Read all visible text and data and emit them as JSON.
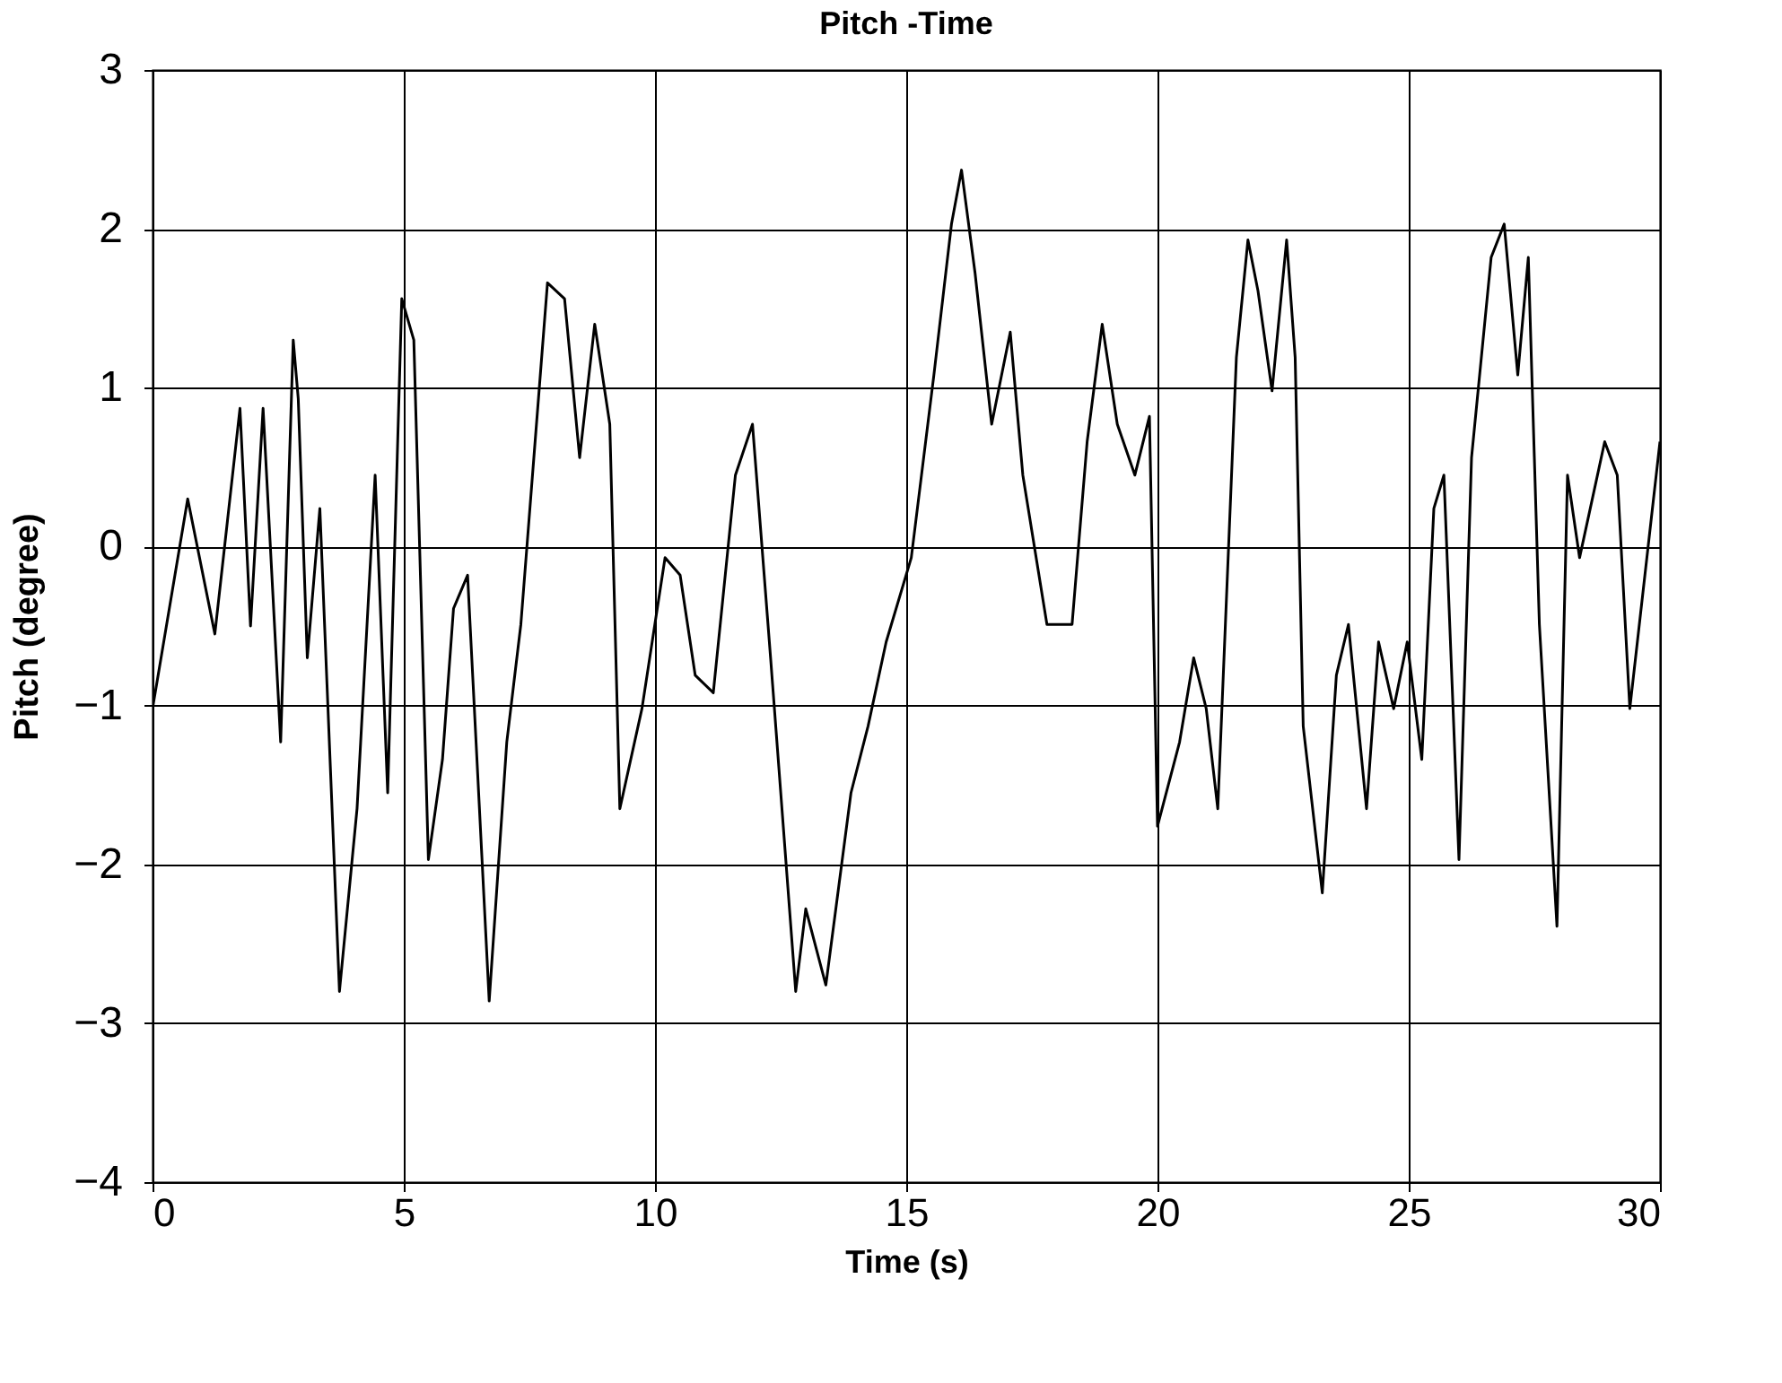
{
  "chart_data": {
    "type": "line",
    "title": "Pitch -Time",
    "xlabel": "Time (s)",
    "ylabel": "Pitch (degree)",
    "xlim": [
      0,
      30
    ],
    "xticks": [
      0,
      5,
      10,
      15,
      20,
      25,
      30
    ],
    "ylim": [
      -4,
      3
    ],
    "yticks": [
      -4,
      -3,
      -2,
      -1,
      0,
      1,
      2,
      3
    ],
    "grid": true,
    "marker": "none",
    "line_style": "solid",
    "x": [
      0,
      0.7,
      1.24,
      1.74,
      1.95,
      2.2,
      2.55,
      2.8,
      2.9,
      3.08,
      3.33,
      3.72,
      4.07,
      4.43,
      4.68,
      4.96,
      5.2,
      5.49,
      5.77,
      5.99,
      6.27,
      6.7,
      7.05,
      7.33,
      7.86,
      8.2,
      8.5,
      8.8,
      9.1,
      9.3,
      9.74,
      10.2,
      10.5,
      10.8,
      11.16,
      11.6,
      11.94,
      12.3,
      12.8,
      13.0,
      13.4,
      13.9,
      14.24,
      14.6,
      15.1,
      15.55,
      15.9,
      16.1,
      16.37,
      16.7,
      17.07,
      17.32,
      17.8,
      18.3,
      18.6,
      18.9,
      19.2,
      19.55,
      19.84,
      20.0,
      20.44,
      20.72,
      20.97,
      21.2,
      21.57,
      21.8,
      22.0,
      22.28,
      22.57,
      22.74,
      22.9,
      23.28,
      23.56,
      23.8,
      24.16,
      24.4,
      24.7,
      24.97,
      25.26,
      25.5,
      25.7,
      26.0,
      26.25,
      26.64,
      26.9,
      27.17,
      27.38,
      27.6,
      27.95,
      28.16,
      28.4,
      28.9,
      29.15,
      29.4,
      30
    ],
    "series": [
      {
        "color": "#000000",
        "values": [
          -1.02,
          0.3,
          -0.55,
          0.87,
          -0.5,
          0.87,
          -1.23,
          1.3,
          0.93,
          -0.7,
          0.24,
          -2.8,
          -1.65,
          0.45,
          -1.55,
          1.56,
          1.3,
          -1.97,
          -1.34,
          -0.39,
          -0.18,
          -2.86,
          -1.23,
          -0.49,
          1.66,
          1.56,
          0.56,
          1.4,
          0.77,
          -1.65,
          -1.02,
          -0.07,
          -0.18,
          -0.81,
          -0.92,
          0.45,
          0.77,
          -0.7,
          -2.8,
          -2.28,
          -2.76,
          -1.55,
          -1.13,
          -0.6,
          -0.07,
          1.08,
          2.03,
          2.37,
          1.72,
          0.77,
          1.35,
          0.45,
          -0.49,
          -0.49,
          0.66,
          1.4,
          0.77,
          0.45,
          0.82,
          -1.76,
          -1.23,
          -0.7,
          -1.02,
          -1.65,
          1.19,
          1.93,
          1.61,
          0.98,
          1.93,
          1.19,
          -1.13,
          -2.18,
          -0.81,
          -0.49,
          -1.65,
          -0.6,
          -1.02,
          -0.6,
          -1.34,
          0.24,
          0.45,
          -1.97,
          0.56,
          1.82,
          2.03,
          1.08,
          1.82,
          -0.49,
          -2.39,
          0.45,
          -0.07,
          0.66,
          0.45,
          -1.02,
          0.66
        ]
      }
    ]
  }
}
